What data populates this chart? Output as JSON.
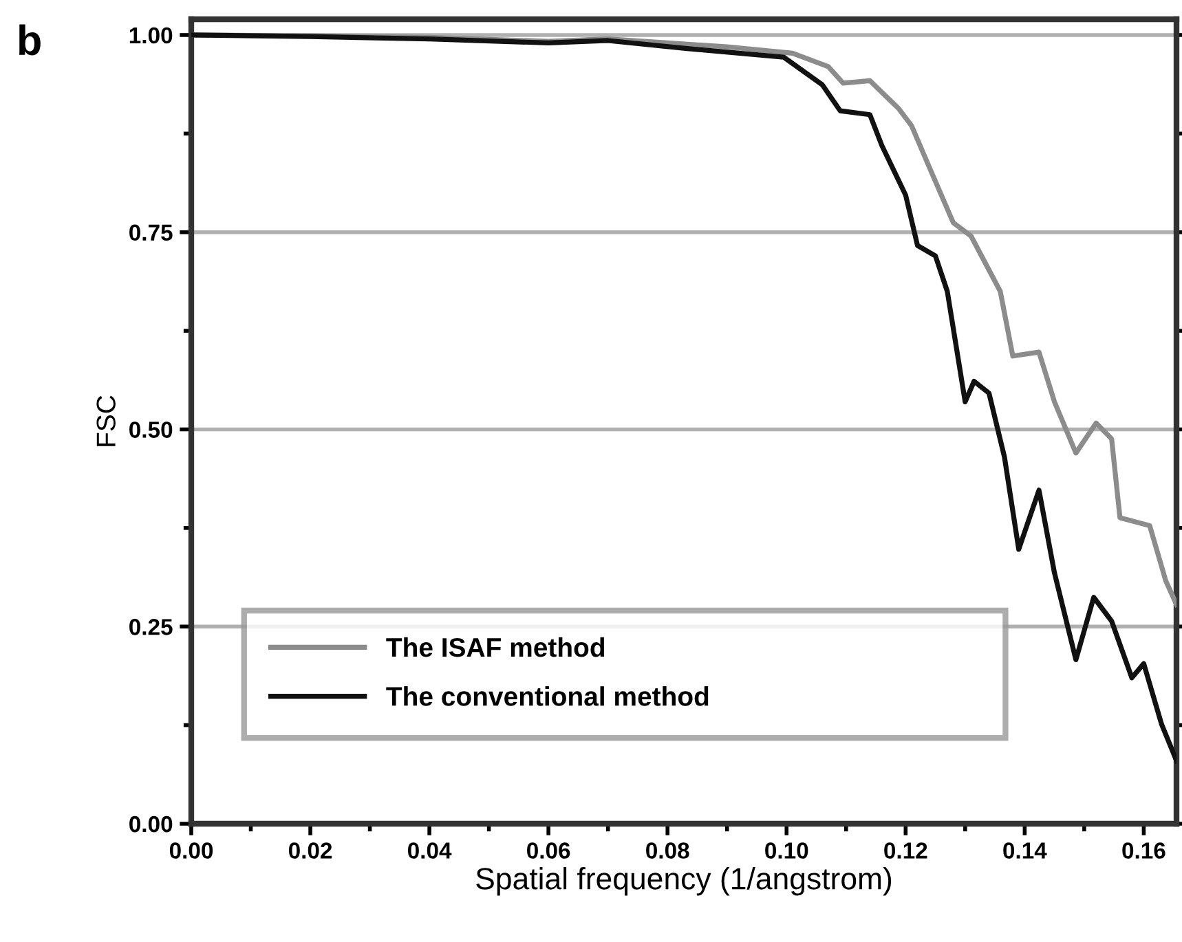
{
  "chart_data": {
    "type": "line",
    "xlabel": "Spatial frequency (1/angstrom)",
    "ylabel": "FSC",
    "annotations": [
      "b"
    ],
    "xlim": [
      0,
      0.1655
    ],
    "ylim": [
      0,
      1.02
    ],
    "xticks": [
      {
        "value": 0,
        "label": "0.00"
      },
      0.02,
      0.04,
      0.06,
      0.08,
      {
        "value": 0.1,
        "label": "0.10"
      },
      0.12,
      0.14,
      0.16
    ],
    "yticks": [
      {
        "value": 0,
        "label": "0.00"
      },
      0.25,
      {
        "value": 0.5,
        "label": "0.50"
      },
      0.75,
      {
        "value": 1,
        "label": "1.00"
      }
    ],
    "grid": "y",
    "legend": "bottom left",
    "marker": "none",
    "line_style": "solid",
    "series": [
      {
        "name": "The ISAF method",
        "color": "#8c8c8c",
        "x": [
          0,
          0.02,
          0.04,
          0.06,
          0.07,
          0.08,
          0.09,
          0.101,
          0.107,
          0.1095,
          0.114,
          0.1188,
          0.121,
          0.124,
          0.128,
          0.131,
          0.1359,
          0.138,
          0.1424,
          0.145,
          0.1486,
          0.152,
          0.1546,
          0.156,
          0.161,
          0.1637,
          0.1655
        ],
        "values": [
          1.0,
          0.999,
          0.997,
          0.992,
          0.995,
          0.99,
          0.985,
          0.977,
          0.96,
          0.939,
          0.942,
          0.907,
          0.885,
          0.832,
          0.762,
          0.745,
          0.675,
          0.593,
          0.598,
          0.535,
          0.47,
          0.508,
          0.488,
          0.388,
          0.378,
          0.308,
          0.278
        ]
      },
      {
        "name": "The conventional method",
        "color": "#111111",
        "x": [
          0,
          0.02,
          0.04,
          0.06,
          0.07,
          0.083,
          0.0995,
          0.106,
          0.109,
          0.114,
          0.116,
          0.12,
          0.122,
          0.125,
          0.127,
          0.13,
          0.1315,
          0.134,
          0.1366,
          0.139,
          0.1424,
          0.145,
          0.1486,
          0.1516,
          0.1546,
          0.158,
          0.16,
          0.163,
          0.1655
        ],
        "values": [
          1.0,
          0.998,
          0.995,
          0.99,
          0.993,
          0.983,
          0.972,
          0.937,
          0.904,
          0.899,
          0.86,
          0.797,
          0.733,
          0.72,
          0.675,
          0.535,
          0.561,
          0.546,
          0.465,
          0.348,
          0.423,
          0.318,
          0.208,
          0.287,
          0.257,
          0.185,
          0.203,
          0.126,
          0.08
        ]
      }
    ]
  }
}
